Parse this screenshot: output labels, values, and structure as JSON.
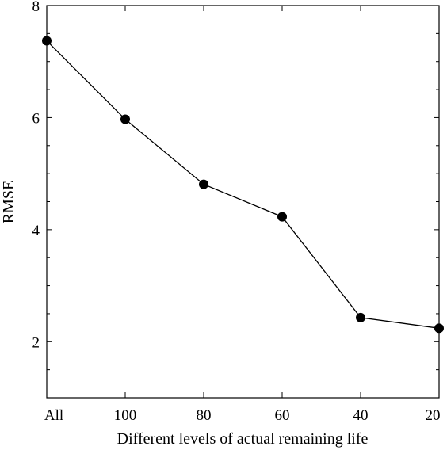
{
  "chart_data": {
    "type": "line",
    "title": "",
    "xlabel": "Different levels of actual remaining life",
    "ylabel": "RMSE",
    "categories": [
      "All",
      "100",
      "80",
      "60",
      "40",
      "20"
    ],
    "series": [
      {
        "values": [
          7.37,
          5.97,
          4.81,
          4.23,
          2.43,
          2.24
        ]
      }
    ],
    "ylim": [
      1,
      8
    ],
    "yticks": [
      "2",
      "4",
      "6",
      "8"
    ],
    "grid": false,
    "legend": "none",
    "colors": {
      "line": "#000000",
      "marker": "#000000",
      "axes": "#000000"
    }
  }
}
